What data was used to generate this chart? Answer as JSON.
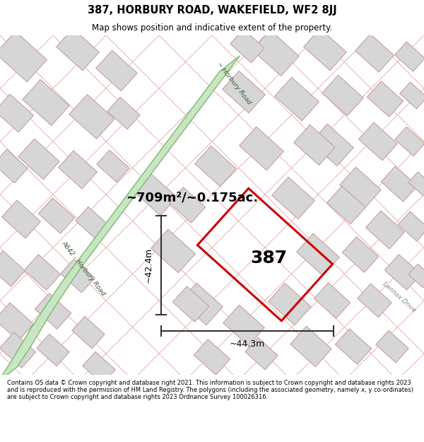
{
  "title_line1": "387, HORBURY ROAD, WAKEFIELD, WF2 8JJ",
  "title_line2": "Map shows position and indicative extent of the property.",
  "footer_text": "Contains OS data © Crown copyright and database right 2021. This information is subject to Crown copyright and database rights 2023 and is reproduced with the permission of HM Land Registry. The polygons (including the associated geometry, namely x, y co-ordinates) are subject to Crown copyright and database rights 2023 Ordnance Survey 100026316.",
  "area_label": "~709m²/~0.175ac.",
  "number_label": "387",
  "dim_h_label": "~42.4m",
  "dim_w_label": "~44.3m",
  "road_label_top": "~ Horbury Road",
  "road_label_left": "A642 - Horbury Road",
  "road_label_right": "Lennox Drive",
  "map_bg": "#faf6f6",
  "green_road_fill": "#c8e6c2",
  "green_road_edge": "#7ab870",
  "red_plot_color": "#cc0000",
  "building_fill": "#d6d6d6",
  "building_edge": "#c8a0a0",
  "road_line_color": "#e8b0b0",
  "dim_line_color": "#333333",
  "title_fontsize": 10.5,
  "subtitle_fontsize": 8.5,
  "area_fontsize": 13,
  "number_fontsize": 18,
  "dim_fontsize": 9,
  "road_text_fontsize": 6.5,
  "footer_fontsize": 6.0
}
